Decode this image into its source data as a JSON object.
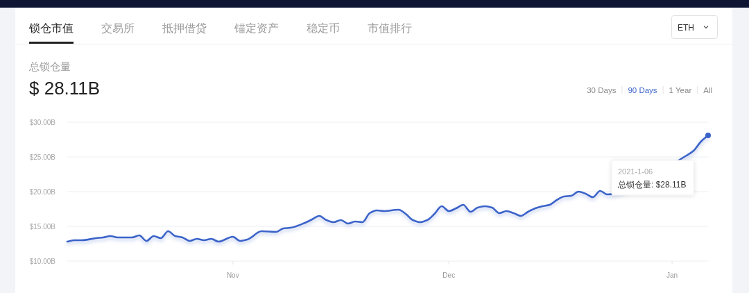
{
  "chart_data": {
    "type": "line",
    "title": "总锁仓量",
    "subtitle": "$ 28.11B",
    "x": [
      "2020-10-09",
      "2020-10-10",
      "2020-10-11",
      "2020-10-13",
      "2020-10-14",
      "2020-10-15",
      "2020-10-16",
      "2020-10-18",
      "2020-10-19",
      "2020-10-20",
      "2020-10-21",
      "2020-10-22",
      "2020-10-23",
      "2020-10-24",
      "2020-10-25",
      "2020-10-26",
      "2020-10-27",
      "2020-10-28",
      "2020-10-29",
      "2020-10-30",
      "2020-11-01",
      "2020-11-02",
      "2020-11-03",
      "2020-11-05",
      "2020-11-07",
      "2020-11-08",
      "2020-11-09",
      "2020-11-11",
      "2020-11-12",
      "2020-11-13",
      "2020-11-14",
      "2020-11-15",
      "2020-11-16",
      "2020-11-17",
      "2020-11-18",
      "2020-11-19",
      "2020-11-20",
      "2020-11-21",
      "2020-11-22",
      "2020-11-24",
      "2020-11-25",
      "2020-11-26",
      "2020-11-27",
      "2020-11-28",
      "2020-11-29",
      "2020-11-30",
      "2020-12-01",
      "2020-12-02",
      "2020-12-03",
      "2020-12-04",
      "2020-12-05",
      "2020-12-06",
      "2020-12-07",
      "2020-12-08",
      "2020-12-09",
      "2020-12-10",
      "2020-12-11",
      "2020-12-12",
      "2020-12-13",
      "2020-12-14",
      "2020-12-15",
      "2020-12-16",
      "2020-12-17",
      "2020-12-18",
      "2020-12-19",
      "2020-12-20",
      "2020-12-21",
      "2020-12-22",
      "2020-12-23",
      "2021-01-03",
      "2021-01-04",
      "2021-01-05",
      "2021-01-06"
    ],
    "values": [
      12.8,
      13.0,
      13.0,
      13.3,
      13.4,
      13.6,
      13.4,
      13.4,
      13.7,
      12.9,
      13.6,
      13.3,
      14.3,
      13.6,
      13.4,
      12.9,
      13.2,
      13.0,
      13.2,
      12.8,
      13.5,
      12.9,
      13.1,
      14.3,
      14.2,
      14.7,
      14.8,
      15.5,
      16.0,
      16.5,
      15.9,
      15.6,
      15.9,
      15.4,
      15.7,
      15.6,
      16.9,
      17.3,
      17.2,
      17.4,
      16.8,
      15.9,
      15.6,
      15.9,
      16.8,
      17.9,
      17.2,
      17.6,
      18.1,
      17.1,
      17.7,
      17.9,
      17.7,
      16.9,
      17.2,
      16.9,
      16.5,
      17.1,
      17.6,
      17.9,
      18.1,
      18.8,
      19.3,
      19.4,
      20.0,
      19.7,
      19.2,
      20.1,
      19.6,
      25.2,
      25.9,
      27.2,
      28.11
    ],
    "color": "#3b64c9",
    "xlim": [
      "2020-10-09",
      "2021-01-06"
    ],
    "ylim": [
      10,
      30
    ],
    "xticks": [
      {
        "value": "2020-11-01",
        "label": "Nov"
      },
      {
        "value": "2020-12-01",
        "label": "Dec"
      },
      {
        "value": "2021-01-01",
        "label": "Jan"
      }
    ],
    "yticks": [
      {
        "value": 10,
        "label": "$10.00B"
      },
      {
        "value": 15,
        "label": "$15.00B"
      },
      {
        "value": 20,
        "label": "$20.00B"
      },
      {
        "value": 25,
        "label": "$25.00B"
      },
      {
        "value": 30,
        "label": "$30.00B"
      }
    ],
    "grid": "y",
    "annotations": [
      "锁仓市值",
      "交易所",
      "抵押借贷",
      "锚定资产",
      "稳定币",
      "市值排行",
      "ETH",
      "30 Days",
      "90 Days",
      "1 Year",
      "All",
      "2021-1-06",
      "总锁仓量: $28.11B"
    ]
  }
}
